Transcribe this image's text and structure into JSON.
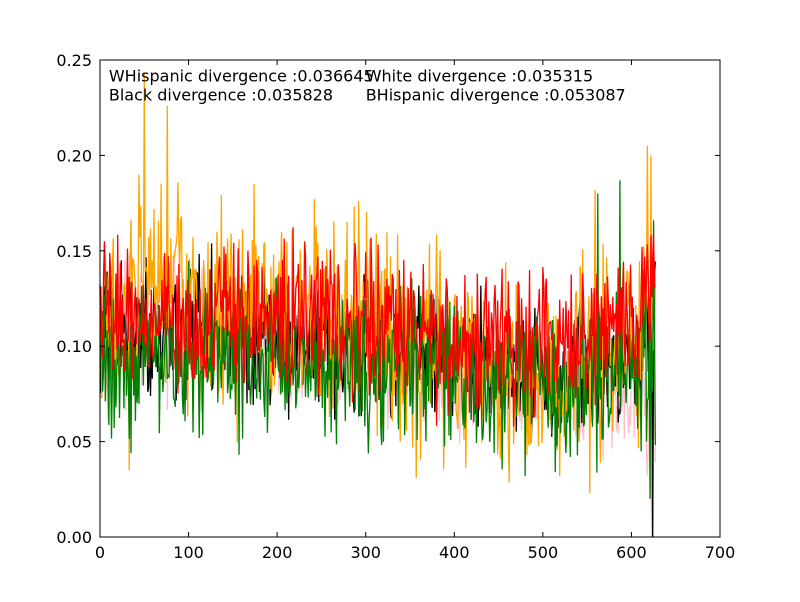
{
  "chart_data": {
    "type": "line",
    "title": "",
    "xlabel": "",
    "ylabel": "",
    "xlim": [
      0,
      700
    ],
    "ylim": [
      0,
      0.25
    ],
    "x_ticks": [
      0,
      100,
      200,
      300,
      400,
      500,
      600,
      700
    ],
    "x_tick_labels": [
      "0",
      "100",
      "200",
      "300",
      "400",
      "500",
      "600",
      "700"
    ],
    "y_ticks": [
      0.0,
      0.05,
      0.1,
      0.15,
      0.2,
      0.25
    ],
    "y_tick_labels": [
      "0.00",
      "0.05",
      "0.10",
      "0.15",
      "0.20",
      "0.25"
    ],
    "grid": false,
    "legend": "none",
    "annotations": [
      {
        "text": "WHispanic divergence :0.036645",
        "x": 10,
        "y": 0.242
      },
      {
        "text": "White divergence :0.035315",
        "x": 300,
        "y": 0.242
      },
      {
        "text": "Black divergence :0.035828",
        "x": 10,
        "y": 0.232
      },
      {
        "text": "BHispanic divergence :0.053087",
        "x": 300,
        "y": 0.232
      }
    ],
    "n_points": 628,
    "series": [
      {
        "color": "#ffc0cb",
        "noise": 0.016,
        "knots": [
          [
            0,
            0.107
          ],
          [
            60,
            0.106
          ],
          [
            150,
            0.103
          ],
          [
            250,
            0.1
          ],
          [
            350,
            0.092
          ],
          [
            450,
            0.083
          ],
          [
            520,
            0.076
          ],
          [
            570,
            0.079
          ],
          [
            610,
            0.082
          ],
          [
            627,
            0.05
          ]
        ]
      },
      {
        "color": "#000000",
        "noise": 0.017,
        "knots": [
          [
            0,
            0.108
          ],
          [
            60,
            0.11
          ],
          [
            150,
            0.107
          ],
          [
            250,
            0.106
          ],
          [
            350,
            0.097
          ],
          [
            450,
            0.088
          ],
          [
            520,
            0.083
          ],
          [
            570,
            0.088
          ],
          [
            610,
            0.095
          ],
          [
            627,
            0.11
          ]
        ]
      },
      {
        "color": "#ffa500",
        "noise": 0.026,
        "knots": [
          [
            0,
            0.11
          ],
          [
            50,
            0.135
          ],
          [
            100,
            0.118
          ],
          [
            200,
            0.112
          ],
          [
            250,
            0.116
          ],
          [
            350,
            0.1
          ],
          [
            450,
            0.09
          ],
          [
            520,
            0.085
          ],
          [
            570,
            0.1
          ],
          [
            610,
            0.11
          ],
          [
            627,
            0.12
          ]
        ]
      },
      {
        "color": "#008000",
        "noise": 0.02,
        "knots": [
          [
            0,
            0.09
          ],
          [
            60,
            0.095
          ],
          [
            150,
            0.09
          ],
          [
            250,
            0.095
          ],
          [
            350,
            0.088
          ],
          [
            450,
            0.08
          ],
          [
            520,
            0.075
          ],
          [
            570,
            0.085
          ],
          [
            610,
            0.09
          ],
          [
            627,
            0.1
          ]
        ]
      },
      {
        "color": "#ff0000",
        "noise": 0.018,
        "knots": [
          [
            0,
            0.118
          ],
          [
            60,
            0.118
          ],
          [
            150,
            0.112
          ],
          [
            250,
            0.118
          ],
          [
            350,
            0.108
          ],
          [
            450,
            0.1
          ],
          [
            520,
            0.098
          ],
          [
            570,
            0.11
          ],
          [
            610,
            0.112
          ],
          [
            627,
            0.13
          ]
        ]
      }
    ],
    "spikes": [
      {
        "series": 2,
        "x": 50,
        "y": 0.243
      },
      {
        "series": 2,
        "x": 76,
        "y": 0.226
      },
      {
        "series": 2,
        "x": 44,
        "y": 0.19
      },
      {
        "series": 2,
        "x": 88,
        "y": 0.186
      },
      {
        "series": 2,
        "x": 174,
        "y": 0.185
      },
      {
        "series": 2,
        "x": 292,
        "y": 0.176
      },
      {
        "series": 2,
        "x": 33,
        "y": 0.035
      },
      {
        "series": 2,
        "x": 618,
        "y": 0.205
      },
      {
        "series": 2,
        "x": 622,
        "y": 0.2
      },
      {
        "series": 2,
        "x": 559,
        "y": 0.182
      },
      {
        "series": 2,
        "x": 553,
        "y": 0.023
      },
      {
        "series": 2,
        "x": 313,
        "y": 0.053
      },
      {
        "series": 3,
        "x": 587,
        "y": 0.187
      },
      {
        "series": 3,
        "x": 562,
        "y": 0.18
      },
      {
        "series": 3,
        "x": 514,
        "y": 0.034
      },
      {
        "series": 3,
        "x": 621,
        "y": 0.02
      },
      {
        "series": 3,
        "x": 625,
        "y": 0.166
      },
      {
        "series": 1,
        "x": 624,
        "y": 0.0
      },
      {
        "series": 0,
        "x": 623,
        "y": 0.0
      },
      {
        "series": 4,
        "x": 622,
        "y": 0.158
      },
      {
        "series": 4,
        "x": 625,
        "y": 0.159
      }
    ]
  }
}
